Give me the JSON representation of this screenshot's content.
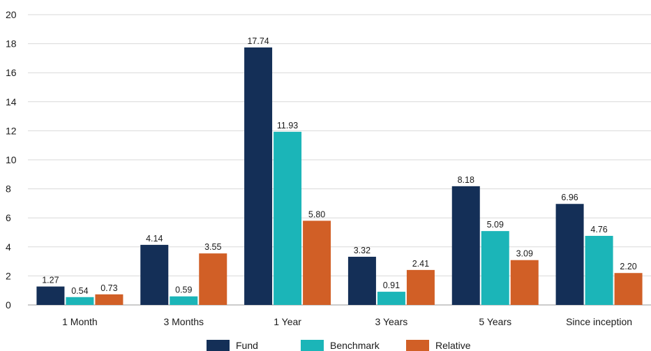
{
  "chart_data": {
    "type": "bar",
    "categories": [
      "1 Month",
      "3 Months",
      "1 Year",
      "3 Years",
      "5 Years",
      "Since inception"
    ],
    "series": [
      {
        "name": "Fund",
        "color": "#142f57",
        "values": [
          1.27,
          4.14,
          17.74,
          3.32,
          8.18,
          6.96
        ]
      },
      {
        "name": "Benchmark",
        "color": "#1bb5b8",
        "values": [
          0.54,
          0.59,
          11.93,
          0.91,
          5.09,
          4.76
        ]
      },
      {
        "name": "Relative",
        "color": "#d15f26",
        "values": [
          0.73,
          3.55,
          5.8,
          2.41,
          3.09,
          2.2
        ]
      }
    ],
    "ylim": [
      0,
      20
    ],
    "yticks": [
      0,
      2,
      4,
      6,
      8,
      10,
      12,
      14,
      16,
      18,
      20
    ],
    "grid": true,
    "legend_position": "bottom-center",
    "title": "",
    "xlabel": "",
    "ylabel": ""
  }
}
